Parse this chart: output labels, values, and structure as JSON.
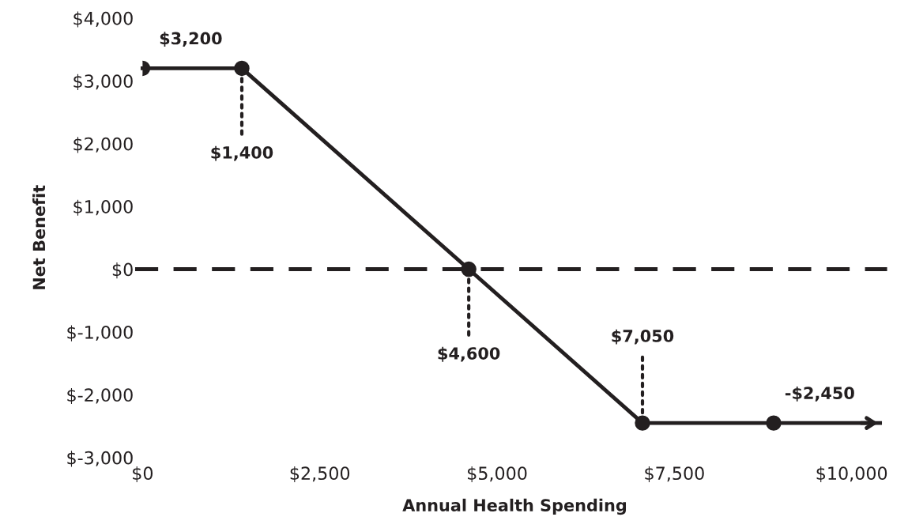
{
  "chart_data": {
    "type": "line",
    "xlabel": "Annual Health Spending",
    "ylabel": "Net Benefit",
    "x": [
      0,
      1400,
      4600,
      7050,
      8900,
      10400
    ],
    "series": [
      {
        "color": "#231f20",
        "values": [
          3200,
          3200,
          0,
          -2450,
          -2450,
          -2450
        ]
      }
    ],
    "marker": "circle",
    "line_style": "solid",
    "xlim": [
      0,
      10500
    ],
    "ylim": [
      -3000,
      4000
    ],
    "xticks": [
      {
        "value": 0,
        "label": "$0"
      },
      {
        "value": 2500,
        "label": "$2,500"
      },
      {
        "value": 5000,
        "label": "$5,000"
      },
      {
        "value": 7500,
        "label": "$7,500"
      },
      {
        "value": 10000,
        "label": "$10,000"
      }
    ],
    "yticks": [
      {
        "value": -3000,
        "label": "$-3,000"
      },
      {
        "value": -2000,
        "label": "$-2,000"
      },
      {
        "value": -1000,
        "label": "$-1,000"
      },
      {
        "value": 0,
        "label": "$0"
      },
      {
        "value": 1000,
        "label": "$1,000"
      },
      {
        "value": 2000,
        "label": "$2,000"
      },
      {
        "value": 3000,
        "label": "$3,000"
      },
      {
        "value": 4000,
        "label": "$4,000"
      }
    ],
    "ref_lines": [
      {
        "axis": "y",
        "value": 0,
        "color": "#231f20",
        "line_style": "dashed"
      }
    ],
    "annotations": [
      {
        "text": "$3,200",
        "x": 680,
        "y": 3200
      },
      {
        "text": "$1,400",
        "x": 1400,
        "y": 3200
      },
      {
        "text": "$4,600",
        "x": 4600,
        "y": 0
      },
      {
        "text": "$7,050",
        "x": 7050,
        "y": -2450
      },
      {
        "text": "-$2,450",
        "x": 9550,
        "y": -2450
      }
    ],
    "grid": false,
    "legend": false
  }
}
